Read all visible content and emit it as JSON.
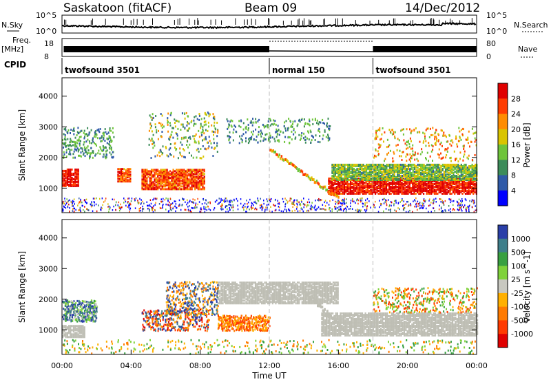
{
  "header": {
    "radar": "Saskatoon (fitACF)",
    "beam": "Beam 09",
    "date": "14/Dec/2012"
  },
  "noise_panel": {
    "left_label": "N.Sky",
    "left_ticks": [
      "10^5",
      "10^0"
    ],
    "right_label": "N.Search",
    "right_ticks": [
      "10^5",
      "10^0"
    ]
  },
  "freq_panel": {
    "left_label_1": "Freq.",
    "left_label_2": "[MHz]",
    "left_ticks": [
      "18",
      "8"
    ],
    "right_label": "Nave",
    "right_ticks": [
      "80",
      "0"
    ]
  },
  "cpid_panel": {
    "label": "CPID",
    "segments": [
      {
        "name": "twofsound 3501",
        "start_hour": 0
      },
      {
        "name": "normal 150",
        "start_hour": 12
      },
      {
        "name": "twofsound 3501",
        "start_hour": 18
      }
    ]
  },
  "x_axis": {
    "label": "Time UT",
    "ticks": [
      "00:00",
      "04:00",
      "08:00",
      "12:00",
      "16:00",
      "20:00",
      "00:00"
    ]
  },
  "chart_data": [
    {
      "type": "heatmap",
      "quantity": "Power",
      "ylabel": "Slant Range [km]",
      "xlim_hours": [
        0,
        24
      ],
      "ylim": [
        200,
        4600
      ],
      "y_ticks": [
        "4000",
        "3000",
        "2000",
        "1000"
      ],
      "colorbar_label": "Power [dB]",
      "colorbar_ticks": [
        "28",
        "24",
        "20",
        "16",
        "12",
        "8",
        "4"
      ],
      "colorbar_colors": [
        "#e00000",
        "#ff3c00",
        "#ff8c00",
        "#d9c400",
        "#6ec43a",
        "#3c8c5a",
        "#2f5aa8",
        "#0000ff"
      ],
      "layers": [
        {
          "hours": [
            0,
            0.9
          ],
          "range": [
            1100,
            1650
          ],
          "color_index": 0
        },
        {
          "hours": [
            3.2,
            4.0
          ],
          "range": [
            1250,
            1700
          ],
          "color_index": 1
        },
        {
          "hours": [
            4.6,
            8.2
          ],
          "range": [
            1000,
            1650
          ],
          "color_index": 1
        },
        {
          "hours": [
            15.4,
            24
          ],
          "range": [
            850,
            1350
          ],
          "color_index": 0
        },
        {
          "hours": [
            15.6,
            24
          ],
          "range": [
            1300,
            1800
          ],
          "color_index": 4
        }
      ],
      "scatter_regions": [
        {
          "hours": [
            0,
            3
          ],
          "range": [
            2000,
            3000
          ],
          "dominant": "blue-green"
        },
        {
          "hours": [
            5.0,
            9.0
          ],
          "range": [
            2000,
            3500
          ],
          "dominant": "mixed"
        },
        {
          "hours": [
            9.5,
            15.5
          ],
          "range": [
            2500,
            3300
          ],
          "dominant": "blue-green"
        },
        {
          "hours": [
            18,
            24
          ],
          "range": [
            1900,
            3000
          ],
          "dominant": "orange-green"
        }
      ]
    },
    {
      "type": "heatmap",
      "quantity": "Velocity",
      "ylabel": "Slant Range [km]",
      "xlim_hours": [
        0,
        24
      ],
      "ylim": [
        200,
        4600
      ],
      "y_ticks": [
        "4000",
        "3000",
        "2000",
        "1000"
      ],
      "colorbar_label": "Velocity [m s^-1]",
      "colorbar_ticks": [
        "1000",
        "500",
        "100",
        "25",
        "-25",
        "-100",
        "-500",
        "-1000"
      ],
      "colorbar_colors": [
        "#2a3fa8",
        "#3e7e8a",
        "#38a040",
        "#7fd23a",
        "#c8c8c0",
        "#ffb000",
        "#ff7a00",
        "#ff3a00",
        "#e00000"
      ],
      "ground_scatter_color": "#bebeb4",
      "layers": [
        {
          "hours": [
            0,
            1.3
          ],
          "range": [
            800,
            1200
          ],
          "color_index": 4
        },
        {
          "hours": [
            9.0,
            16.0
          ],
          "range": [
            1900,
            2600
          ],
          "color_index": 4
        },
        {
          "hours": [
            15.0,
            24
          ],
          "range": [
            850,
            1600
          ],
          "color_index": 4
        }
      ]
    }
  ]
}
